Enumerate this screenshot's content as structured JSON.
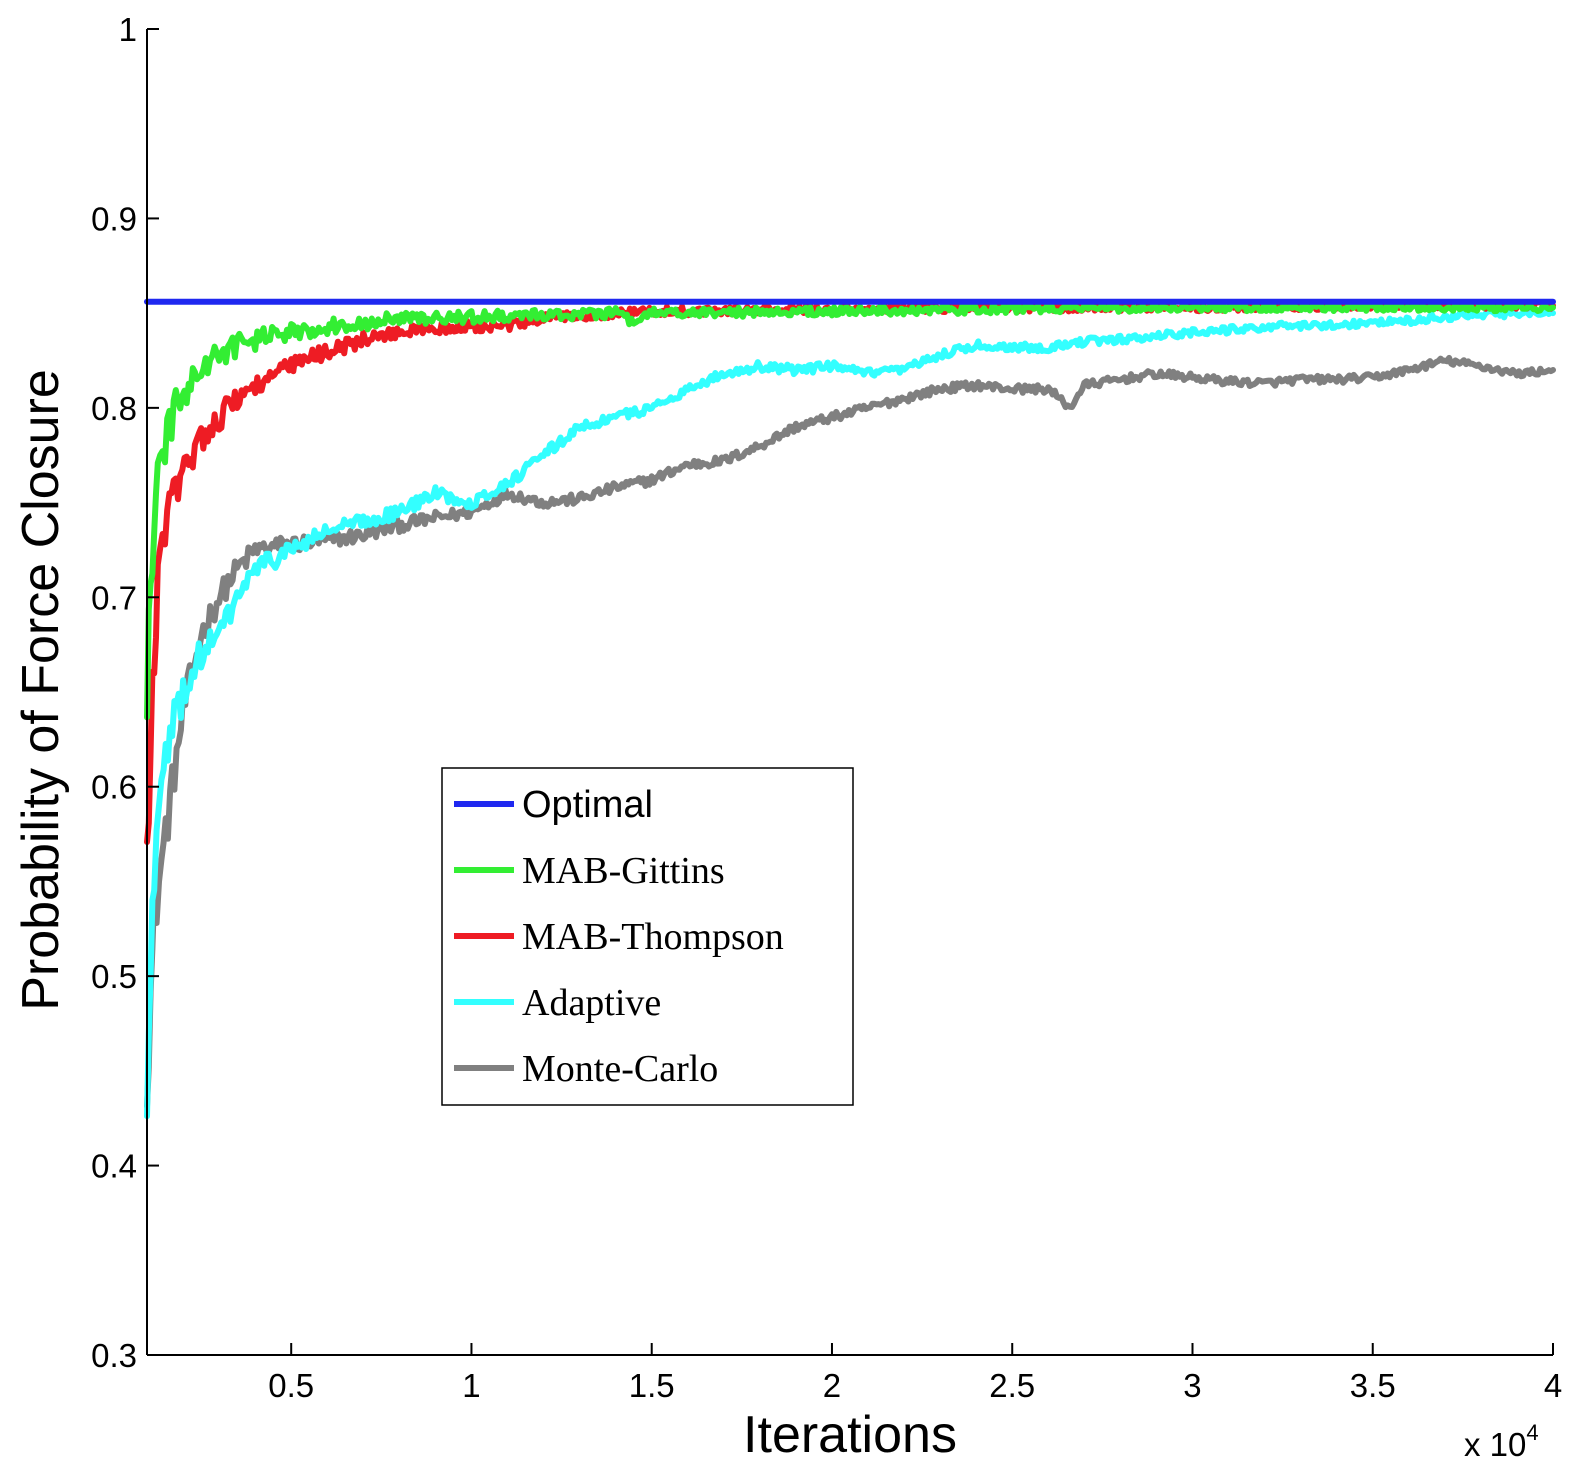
{
  "chart_data": {
    "type": "line",
    "title": "",
    "xlabel": "Iterations",
    "ylabel": "Probability of Force Closure",
    "x_multiplier": "x 10",
    "x_multiplier_exponent": "4",
    "xlim": [
      1000,
      40000
    ],
    "ylim": [
      0.3,
      1.0
    ],
    "xticks": [
      {
        "value": 5000,
        "label": "0.5"
      },
      {
        "value": 10000,
        "label": "1"
      },
      {
        "value": 15000,
        "label": "1.5"
      },
      {
        "value": 20000,
        "label": "2"
      },
      {
        "value": 25000,
        "label": "2.5"
      },
      {
        "value": 30000,
        "label": "3"
      },
      {
        "value": 35000,
        "label": "3.5"
      },
      {
        "value": 40000,
        "label": "4"
      }
    ],
    "yticks": [
      {
        "value": 0.3,
        "label": "0.3"
      },
      {
        "value": 0.4,
        "label": "0.4"
      },
      {
        "value": 0.5,
        "label": "0.5"
      },
      {
        "value": 0.6,
        "label": "0.6"
      },
      {
        "value": 0.7,
        "label": "0.7"
      },
      {
        "value": 0.8,
        "label": "0.8"
      },
      {
        "value": 0.9,
        "label": "0.9"
      },
      {
        "value": 1.0,
        "label": "1"
      }
    ],
    "grid": false,
    "legend_position": "center-left",
    "series": [
      {
        "name": "Optimal",
        "color": "#1f28f0",
        "legend_font": "sans",
        "points": [
          [
            1000,
            0.856
          ],
          [
            40000,
            0.856
          ]
        ]
      },
      {
        "name": "MAB-Gittins",
        "color": "#33ee33",
        "legend_font": "serif",
        "points": [
          [
            1000,
            0.65
          ],
          [
            1100,
            0.71
          ],
          [
            1200,
            0.74
          ],
          [
            1300,
            0.76
          ],
          [
            1500,
            0.78
          ],
          [
            1800,
            0.8
          ],
          [
            2100,
            0.81
          ],
          [
            2500,
            0.82
          ],
          [
            3000,
            0.828
          ],
          [
            3500,
            0.833
          ],
          [
            4000,
            0.836
          ],
          [
            5000,
            0.84
          ],
          [
            6000,
            0.843
          ],
          [
            7000,
            0.845
          ],
          [
            8000,
            0.847
          ],
          [
            10000,
            0.848
          ],
          [
            12000,
            0.849
          ],
          [
            14000,
            0.85
          ],
          [
            14500,
            0.845
          ],
          [
            15000,
            0.85
          ],
          [
            20000,
            0.851
          ],
          [
            25000,
            0.852
          ],
          [
            30000,
            0.853
          ],
          [
            35000,
            0.853
          ],
          [
            40000,
            0.853
          ]
        ]
      },
      {
        "name": "MAB-Thompson",
        "color": "#ee1c24",
        "legend_font": "serif",
        "points": [
          [
            1000,
            0.56
          ],
          [
            1100,
            0.62
          ],
          [
            1200,
            0.67
          ],
          [
            1300,
            0.71
          ],
          [
            1500,
            0.74
          ],
          [
            1800,
            0.755
          ],
          [
            2100,
            0.77
          ],
          [
            2500,
            0.785
          ],
          [
            3000,
            0.795
          ],
          [
            3500,
            0.805
          ],
          [
            4000,
            0.812
          ],
          [
            5000,
            0.822
          ],
          [
            6000,
            0.83
          ],
          [
            7000,
            0.836
          ],
          [
            8000,
            0.84
          ],
          [
            9000,
            0.842
          ],
          [
            10000,
            0.843
          ],
          [
            11000,
            0.843
          ],
          [
            12000,
            0.847
          ],
          [
            13000,
            0.849
          ],
          [
            15000,
            0.851
          ],
          [
            20000,
            0.852
          ],
          [
            25000,
            0.853
          ],
          [
            30000,
            0.853
          ],
          [
            35000,
            0.854
          ],
          [
            40000,
            0.854
          ]
        ]
      },
      {
        "name": "Adaptive",
        "color": "#33ffff",
        "legend_font": "serif",
        "points": [
          [
            1000,
            0.43
          ],
          [
            1100,
            0.5
          ],
          [
            1200,
            0.56
          ],
          [
            1400,
            0.6
          ],
          [
            1700,
            0.63
          ],
          [
            2000,
            0.65
          ],
          [
            2500,
            0.67
          ],
          [
            3000,
            0.68
          ],
          [
            3500,
            0.7
          ],
          [
            4000,
            0.715
          ],
          [
            4500,
            0.72
          ],
          [
            5000,
            0.725
          ],
          [
            6000,
            0.735
          ],
          [
            7000,
            0.74
          ],
          [
            8000,
            0.745
          ],
          [
            9000,
            0.755
          ],
          [
            10000,
            0.75
          ],
          [
            11000,
            0.76
          ],
          [
            12000,
            0.775
          ],
          [
            13000,
            0.79
          ],
          [
            14000,
            0.795
          ],
          [
            15000,
            0.8
          ],
          [
            16000,
            0.81
          ],
          [
            17000,
            0.818
          ],
          [
            18000,
            0.822
          ],
          [
            19000,
            0.82
          ],
          [
            20000,
            0.822
          ],
          [
            21000,
            0.818
          ],
          [
            22000,
            0.82
          ],
          [
            23000,
            0.828
          ],
          [
            24000,
            0.833
          ],
          [
            25000,
            0.832
          ],
          [
            26000,
            0.832
          ],
          [
            27000,
            0.835
          ],
          [
            28000,
            0.836
          ],
          [
            29000,
            0.838
          ],
          [
            30000,
            0.84
          ],
          [
            31000,
            0.841
          ],
          [
            32000,
            0.843
          ],
          [
            33000,
            0.843
          ],
          [
            34000,
            0.844
          ],
          [
            35000,
            0.845
          ],
          [
            36000,
            0.846
          ],
          [
            37000,
            0.848
          ],
          [
            38000,
            0.849
          ],
          [
            39000,
            0.85
          ],
          [
            40000,
            0.85
          ]
        ]
      },
      {
        "name": "Monte-Carlo",
        "color": "#808080",
        "legend_font": "serif",
        "points": [
          [
            1000,
            0.45
          ],
          [
            1100,
            0.49
          ],
          [
            1200,
            0.53
          ],
          [
            1400,
            0.56
          ],
          [
            1700,
            0.6
          ],
          [
            2000,
            0.64
          ],
          [
            2500,
            0.68
          ],
          [
            3000,
            0.7
          ],
          [
            3500,
            0.715
          ],
          [
            4000,
            0.725
          ],
          [
            5000,
            0.728
          ],
          [
            6000,
            0.73
          ],
          [
            7000,
            0.733
          ],
          [
            8000,
            0.738
          ],
          [
            9000,
            0.742
          ],
          [
            10000,
            0.745
          ],
          [
            11000,
            0.755
          ],
          [
            12000,
            0.75
          ],
          [
            13000,
            0.752
          ],
          [
            14000,
            0.758
          ],
          [
            15000,
            0.762
          ],
          [
            16000,
            0.77
          ],
          [
            17000,
            0.772
          ],
          [
            18000,
            0.78
          ],
          [
            19000,
            0.79
          ],
          [
            20000,
            0.795
          ],
          [
            21000,
            0.8
          ],
          [
            22000,
            0.805
          ],
          [
            23000,
            0.81
          ],
          [
            24000,
            0.812
          ],
          [
            25000,
            0.81
          ],
          [
            26000,
            0.81
          ],
          [
            26600,
            0.8
          ],
          [
            27000,
            0.812
          ],
          [
            28000,
            0.815
          ],
          [
            29000,
            0.818
          ],
          [
            30000,
            0.816
          ],
          [
            31000,
            0.814
          ],
          [
            32000,
            0.813
          ],
          [
            33000,
            0.815
          ],
          [
            34000,
            0.815
          ],
          [
            35000,
            0.816
          ],
          [
            36000,
            0.82
          ],
          [
            37000,
            0.825
          ],
          [
            38000,
            0.822
          ],
          [
            39000,
            0.818
          ],
          [
            40000,
            0.82
          ]
        ]
      }
    ]
  }
}
